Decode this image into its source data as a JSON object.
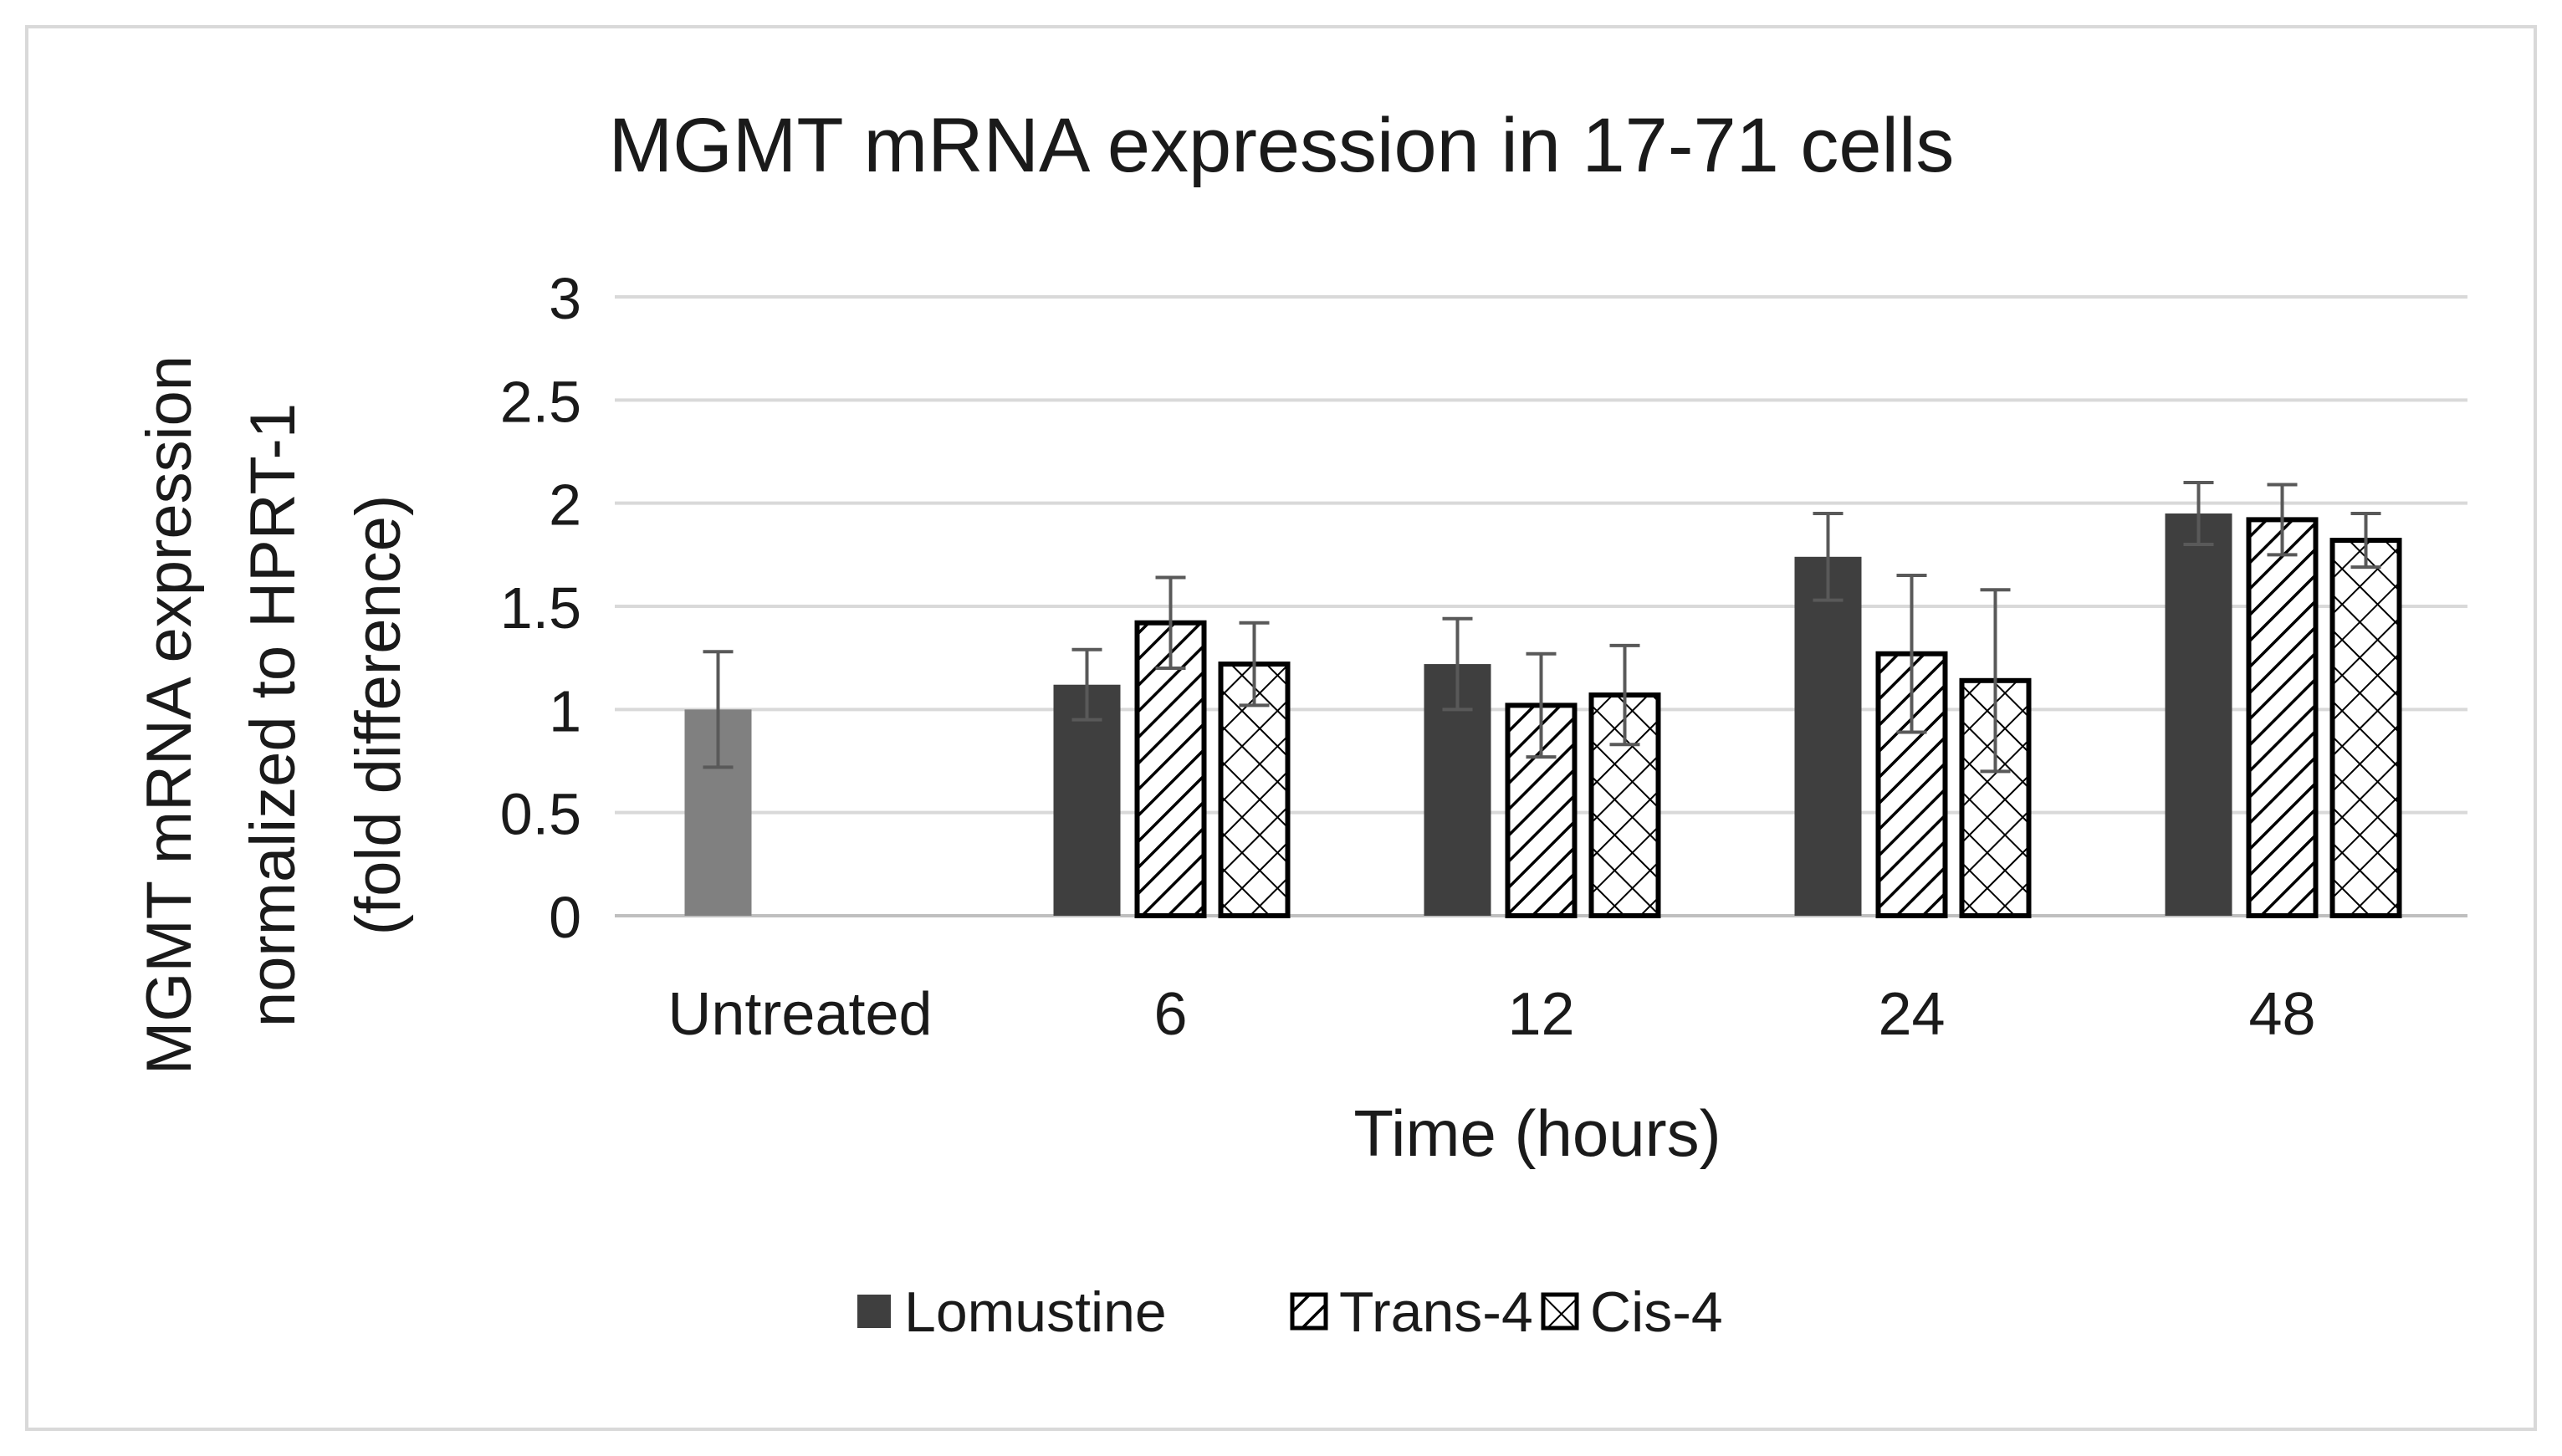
{
  "chart_data": {
    "type": "bar",
    "title": "MGMT mRNA expression  in 17-71 cells",
    "ylabel_lines": [
      "MGMT mRNA expression",
      "normalized to HPRT-1",
      "(fold difference)"
    ],
    "xlabel": "Time (hours)",
    "ylim": [
      0,
      3
    ],
    "yticks": [
      0,
      0.5,
      1,
      1.5,
      2,
      2.5,
      3
    ],
    "ytick_labels": [
      "0",
      "0.5",
      "1",
      "1.5",
      "2",
      "2.5",
      "3"
    ],
    "grid": true,
    "legend_position": "bottom-center",
    "categories": [
      "Untreated",
      "6",
      "12",
      "24",
      "48"
    ],
    "untreated": {
      "value": 1.0,
      "error": 0.28,
      "color": "#808080"
    },
    "series": [
      {
        "name": "Lomustine",
        "pattern": "solid",
        "color": "#3f3f3f",
        "values": [
          null,
          1.12,
          1.22,
          1.74,
          1.95
        ],
        "errors": [
          null,
          0.17,
          0.22,
          0.21,
          0.15
        ]
      },
      {
        "name": "Trans-4",
        "pattern": "diagonal",
        "color": "#000000",
        "values": [
          null,
          1.42,
          1.02,
          1.27,
          1.92
        ],
        "errors": [
          null,
          0.22,
          0.25,
          0.38,
          0.17
        ]
      },
      {
        "name": "Cis-4",
        "pattern": "crosshatch",
        "color": "#000000",
        "values": [
          null,
          1.22,
          1.07,
          1.14,
          1.82
        ],
        "errors": [
          null,
          0.2,
          0.24,
          0.44,
          0.13
        ]
      }
    ]
  }
}
